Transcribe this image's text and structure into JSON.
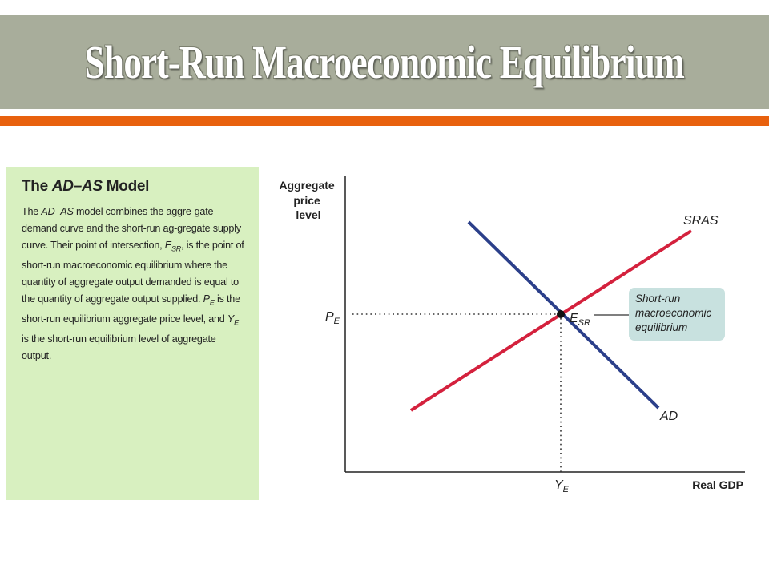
{
  "title": "Short-Run Macroeconomic Equilibrium",
  "panel": {
    "title_prefix": "The ",
    "title_model": "AD–AS",
    "title_suffix": " Model",
    "p_the": "The ",
    "p_adas": "AD–AS",
    "p_text1": " model combines the aggre-gate demand curve and the short-run ag-gregate supply curve. Their point of intersection, ",
    "p_e": "E",
    "p_sr": "SR",
    "p_text2": ", is the point of short-run macroeconomic equilibrium where the quantity of aggregate output demanded is equal to the quantity of aggregate output supplied. ",
    "p_pe_p": "P",
    "p_pe_e": "E",
    "p_text3": " is the short-run equilibrium aggregate price level, and ",
    "p_ye_y": "Y",
    "p_ye_e": "E",
    "p_text4": " is the short-run equilibrium level of aggregate output."
  },
  "diagram": {
    "y_axis_label_lines": [
      "Aggregate",
      "price",
      "level"
    ],
    "x_axis_label": "Real GDP",
    "sras_label": "SRAS",
    "ad_label": "AD",
    "pe_main": "P",
    "pe_sub": "E",
    "ye_main": "Y",
    "ye_sub": "E",
    "eq_main": "E",
    "eq_sub": "SR",
    "callout_lines": [
      "Short-run",
      "macroeconomic",
      "equilibrium"
    ],
    "colors": {
      "sras": "#d4213d",
      "ad": "#2b3f8a",
      "callout": "#c8e1df"
    }
  }
}
